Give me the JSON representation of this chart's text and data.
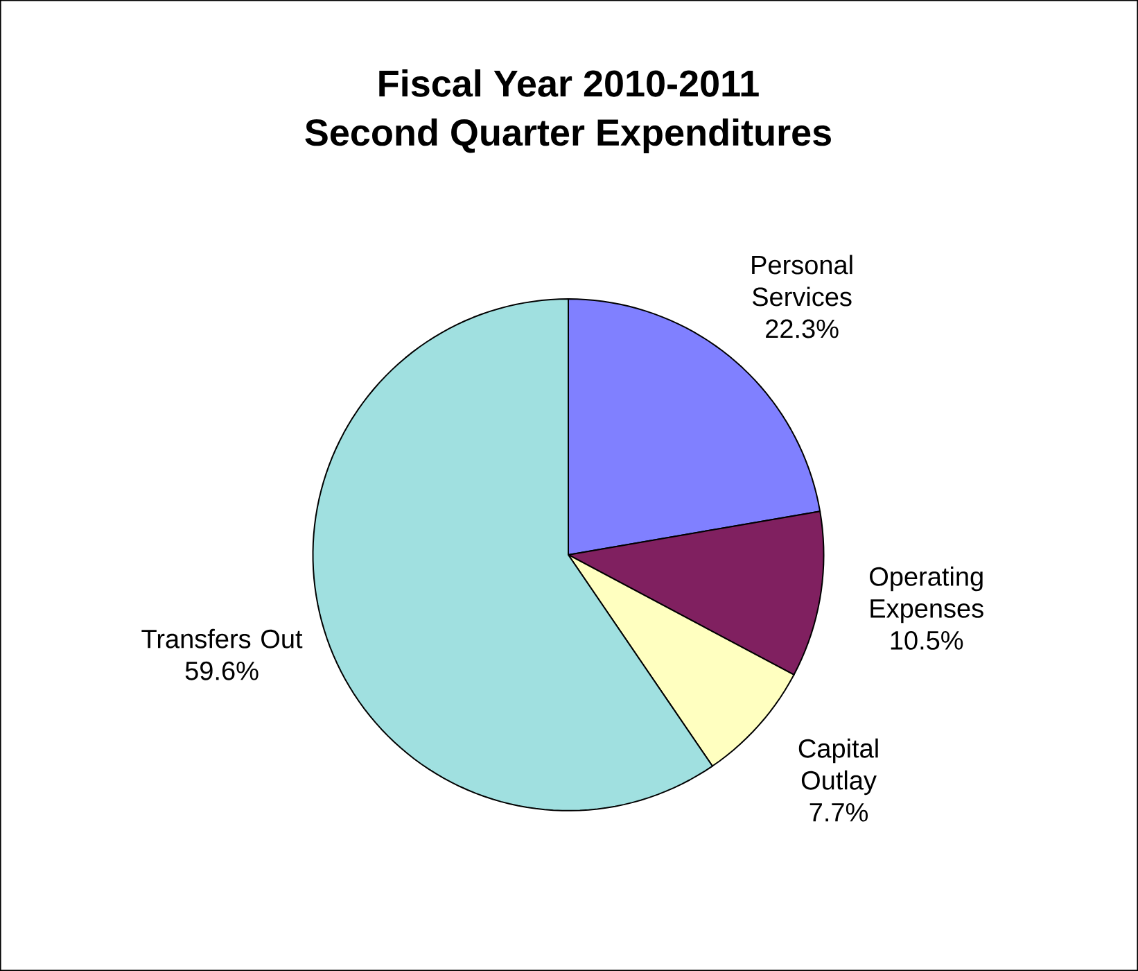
{
  "chart_data": {
    "type": "pie",
    "title": "Fiscal Year 2010-2011",
    "subtitle": "Second Quarter Expenditures",
    "categories": [
      "Personal Services",
      "Operating Expenses",
      "Capital Outlay",
      "Transfers Out"
    ],
    "values": [
      22.3,
      10.5,
      7.7,
      59.6
    ],
    "colors": [
      "#8080ff",
      "#802060",
      "#ffffc0",
      "#a0e0e0"
    ],
    "value_labels": [
      "22.3%",
      "10.5%",
      "7.7%",
      "59.6%"
    ]
  }
}
